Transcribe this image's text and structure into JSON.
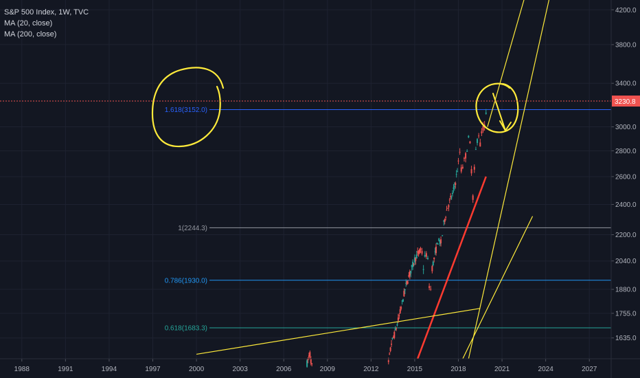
{
  "legend": {
    "title": "S&P 500 Index, 1W, TVC",
    "ma1": "MA (20, close)",
    "ma2": "MA (200, close)"
  },
  "colors": {
    "background": "#131722",
    "candle_up": "#26a69a",
    "candle_down": "#ef5350",
    "price_line": "#ef5350",
    "annotation": "#ffeb3b",
    "fib_1618": "#2962ff",
    "fib_1": "#9598a1",
    "fib_0786": "#2196f3",
    "fib_0618": "#26a69a",
    "red_trend": "#ff3b30"
  },
  "chart_data": {
    "type": "candlestick",
    "x_axis": {
      "ticks": [
        "1988",
        "1991",
        "1994",
        "1997",
        "2000",
        "2003",
        "2006",
        "2009",
        "2012",
        "2015",
        "2018",
        "2021",
        "2024",
        "2027"
      ],
      "range": [
        1986.5,
        2028.5
      ]
    },
    "y_axis": {
      "scale": "log",
      "ticks": [
        {
          "value": 1635,
          "label": "1635.0"
        },
        {
          "value": 1755,
          "label": "1755.0"
        },
        {
          "value": 1880,
          "label": "1880.0"
        },
        {
          "value": 2040,
          "label": "2040.0"
        },
        {
          "value": 2200,
          "label": "2200.0"
        },
        {
          "value": 2400,
          "label": "2400.0"
        },
        {
          "value": 2600,
          "label": "2600.0"
        },
        {
          "value": 2800,
          "label": "2800.0"
        },
        {
          "value": 3000,
          "label": "3000.0"
        },
        {
          "value": 3400,
          "label": "3400.0"
        },
        {
          "value": 3800,
          "label": "3800.0"
        },
        {
          "value": 4200,
          "label": "4200.0"
        }
      ],
      "range": [
        1540,
        4320
      ]
    },
    "last_price": {
      "value": 3230.8,
      "label": "3230.8"
    },
    "fib_levels": [
      {
        "ratio": 1.618,
        "value": 3152.0,
        "label": "1.618(3152.0)",
        "color_key": "fib_1618"
      },
      {
        "ratio": 1,
        "value": 2244.3,
        "label": "1(2244.3)",
        "color_key": "fib_1"
      },
      {
        "ratio": 0.786,
        "value": 1930.0,
        "label": "0.786(1930.0)",
        "color_key": "fib_0786"
      },
      {
        "ratio": 0.618,
        "value": 1683.3,
        "label": "0.618(1683.3)",
        "color_key": "fib_0618"
      }
    ],
    "price_path": [
      [
        2007.6,
        1520
      ],
      [
        2007.8,
        1560
      ],
      [
        2008.0,
        1480
      ],
      [
        2013.2,
        1520
      ],
      [
        2013.4,
        1610
      ],
      [
        2013.6,
        1650
      ],
      [
        2013.8,
        1700
      ],
      [
        2014.0,
        1760
      ],
      [
        2014.2,
        1830
      ],
      [
        2014.4,
        1900
      ],
      [
        2014.6,
        1950
      ],
      [
        2014.8,
        2000
      ],
      [
        2015.0,
        2050
      ],
      [
        2015.2,
        2080
      ],
      [
        2015.4,
        2100
      ],
      [
        2015.5,
        2090
      ],
      [
        2015.6,
        2000
      ],
      [
        2015.7,
        2060
      ],
      [
        2015.8,
        2080
      ],
      [
        2015.9,
        2040
      ],
      [
        2016.0,
        1900
      ],
      [
        2016.1,
        1880
      ],
      [
        2016.2,
        2000
      ],
      [
        2016.4,
        2080
      ],
      [
        2016.6,
        2160
      ],
      [
        2016.8,
        2150
      ],
      [
        2016.9,
        2200
      ],
      [
        2017.0,
        2270
      ],
      [
        2017.2,
        2360
      ],
      [
        2017.4,
        2420
      ],
      [
        2017.6,
        2470
      ],
      [
        2017.8,
        2560
      ],
      [
        2018.0,
        2700
      ],
      [
        2018.1,
        2790
      ],
      [
        2018.2,
        2650
      ],
      [
        2018.3,
        2680
      ],
      [
        2018.4,
        2720
      ],
      [
        2018.5,
        2760
      ],
      [
        2018.6,
        2820
      ],
      [
        2018.7,
        2900
      ],
      [
        2018.8,
        2850
      ],
      [
        2018.9,
        2650
      ],
      [
        2019.0,
        2450
      ],
      [
        2019.1,
        2650
      ],
      [
        2019.2,
        2800
      ],
      [
        2019.3,
        2890
      ],
      [
        2019.4,
        2940
      ],
      [
        2019.5,
        2850
      ],
      [
        2019.6,
        2950
      ],
      [
        2019.7,
        2990
      ],
      [
        2019.8,
        3000
      ],
      [
        2019.9,
        3100
      ],
      [
        2020.0,
        3230
      ]
    ],
    "trendlines": [
      {
        "kind": "red",
        "points": [
          [
            2015.2,
            1540
          ],
          [
            2019.9,
            2600
          ]
        ]
      },
      {
        "kind": "yellow",
        "points": [
          [
            2000.0,
            1560
          ],
          [
            2019.5,
            1780
          ]
        ]
      },
      {
        "kind": "yellow",
        "points": [
          [
            2018.3,
            1540
          ],
          [
            2023.1,
            2320
          ]
        ]
      },
      {
        "kind": "yellow",
        "points": [
          [
            2018.7,
            1540
          ],
          [
            2024.3,
            4380
          ]
        ]
      },
      {
        "kind": "yellow",
        "points": [
          [
            2020.0,
            3000
          ],
          [
            2022.6,
            4380
          ]
        ]
      }
    ]
  }
}
